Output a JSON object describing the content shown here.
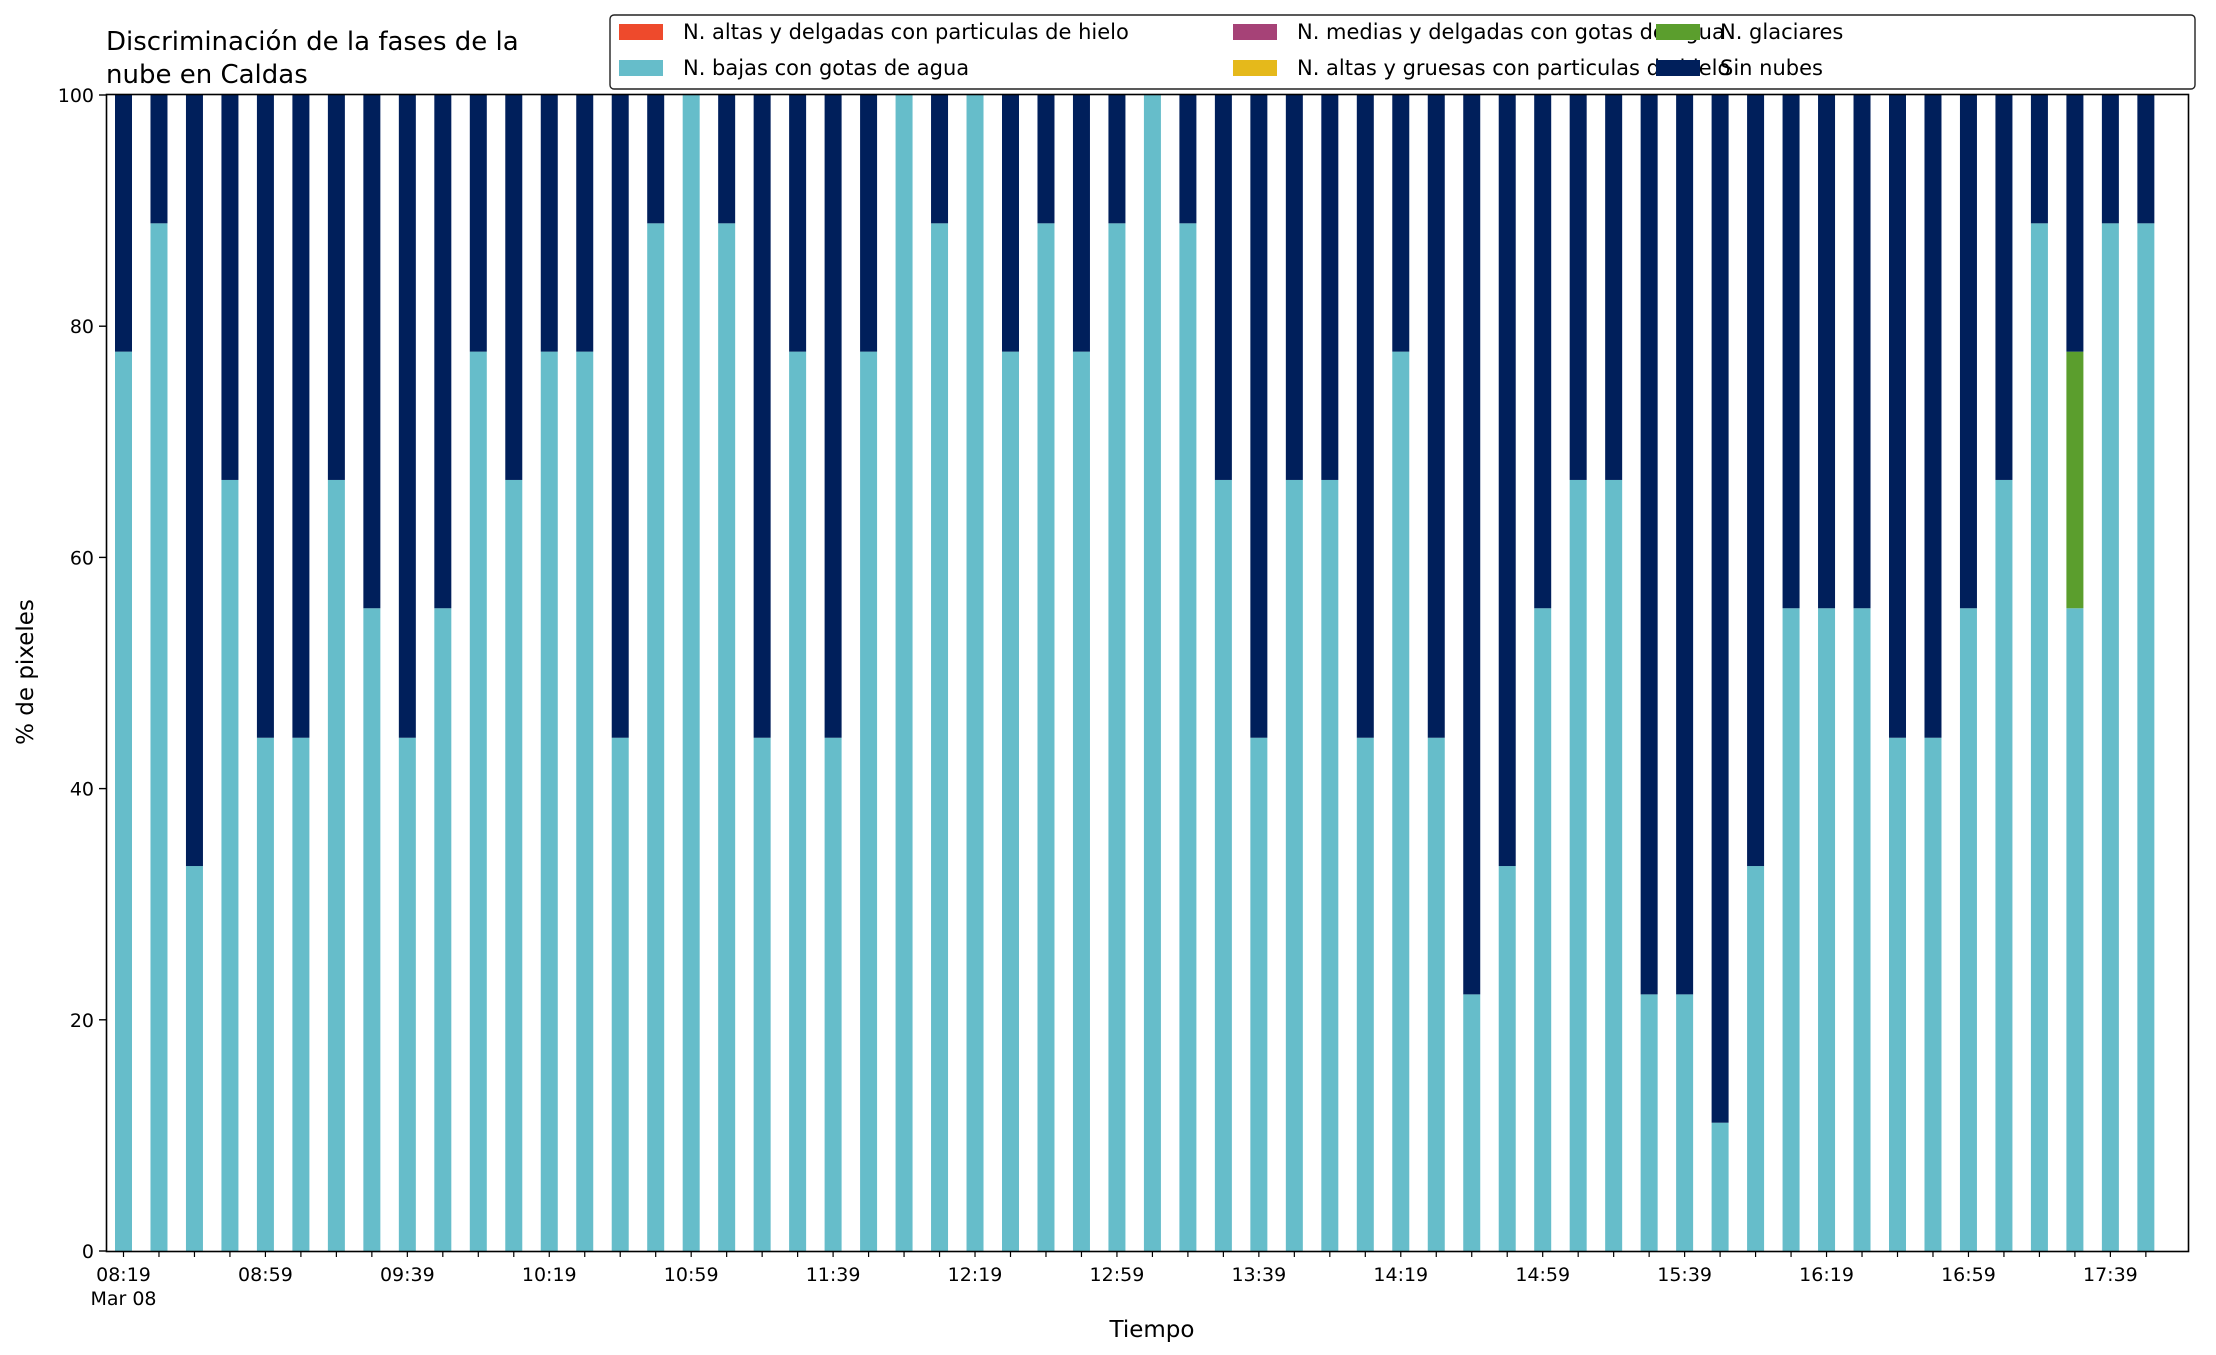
{
  "chart_data": {
    "type": "bar",
    "stacked": true,
    "title": "Discriminación de la fases de la\nnube en Caldas",
    "xlabel": "Tiempo",
    "ylabel": "% de pixeles",
    "ylim": [
      0,
      100
    ],
    "yticks": [
      0,
      20,
      40,
      60,
      80,
      100
    ],
    "grid": false,
    "legend_position": "top-right",
    "legend": [
      "N. altas y delgadas con particulas de hielo",
      "N. bajas con gotas de agua",
      "N. medias y delgadas con gotas de agua",
      "N. altas y gruesas con particulas de hielo",
      "N. glaciares",
      "Sin nubes"
    ],
    "x_tick_labels": [
      "08:19\nMar 08",
      "08:59",
      "09:39",
      "10:19",
      "10:59",
      "11:39",
      "12:19",
      "12:59",
      "13:39",
      "14:19",
      "14:59",
      "15:39",
      "16:19",
      "16:59",
      "17:39"
    ],
    "categories": [
      "08:19",
      "08:29",
      "08:39",
      "08:49",
      "08:59",
      "09:09",
      "09:19",
      "09:29",
      "09:39",
      "09:49",
      "09:59",
      "10:09",
      "10:19",
      "10:29",
      "10:39",
      "10:49",
      "10:59",
      "11:09",
      "11:19",
      "11:29",
      "11:39",
      "11:49",
      "11:59",
      "12:09",
      "12:19",
      "12:29",
      "12:39",
      "12:49",
      "12:59",
      "13:09",
      "13:19",
      "13:29",
      "13:39",
      "13:49",
      "13:59",
      "14:09",
      "14:19",
      "14:29",
      "14:39",
      "14:49",
      "14:59",
      "15:09",
      "15:19",
      "15:29",
      "15:39",
      "15:49",
      "15:59",
      "16:09",
      "16:19",
      "16:29",
      "16:39",
      "16:49",
      "16:59",
      "17:09",
      "17:19",
      "17:29",
      "17:39",
      "17:49"
    ],
    "series": [
      {
        "name": "N. altas y delgadas con particulas de hielo",
        "color": "#ee4a2c",
        "values": [
          0,
          0,
          0,
          0,
          0,
          0,
          0,
          0,
          0,
          0,
          0,
          0,
          0,
          0,
          0,
          0,
          0,
          0,
          0,
          0,
          0,
          0,
          0,
          0,
          0,
          0,
          0,
          0,
          0,
          0,
          0,
          0,
          0,
          0,
          0,
          0,
          0,
          0,
          0,
          0,
          0,
          0,
          0,
          0,
          0,
          0,
          0,
          0,
          0,
          0,
          0,
          0,
          0,
          0,
          0,
          0,
          0,
          0
        ]
      },
      {
        "name": "N. altas y gruesas con particulas de hielo",
        "color": "#e5b91b",
        "values": [
          0,
          0,
          0,
          0,
          0,
          0,
          0,
          0,
          0,
          0,
          0,
          0,
          0,
          0,
          0,
          0,
          0,
          0,
          0,
          0,
          0,
          0,
          0,
          0,
          0,
          0,
          0,
          0,
          0,
          0,
          0,
          0,
          0,
          0,
          0,
          0,
          0,
          0,
          0,
          0,
          0,
          0,
          0,
          0,
          0,
          0,
          0,
          0,
          0,
          0,
          0,
          0,
          0,
          0,
          0,
          0,
          0,
          0
        ]
      },
      {
        "name": "N. bajas con gotas de agua",
        "color": "#66bdca",
        "values": [
          77.8,
          88.9,
          33.3,
          66.7,
          44.4,
          44.4,
          66.7,
          55.6,
          44.4,
          55.6,
          77.8,
          66.7,
          77.8,
          77.8,
          44.4,
          88.9,
          100,
          88.9,
          44.4,
          77.8,
          44.4,
          77.8,
          100,
          88.9,
          100,
          77.8,
          88.9,
          77.8,
          88.9,
          100,
          88.9,
          66.7,
          44.4,
          66.7,
          66.7,
          44.4,
          77.8,
          44.4,
          22.2,
          33.3,
          55.6,
          66.7,
          66.7,
          22.2,
          22.2,
          11.1,
          33.3,
          55.6,
          55.6,
          55.6,
          44.4,
          44.4,
          55.6,
          66.7,
          88.9,
          55.6,
          88.9,
          88.9
        ]
      },
      {
        "name": "N. glaciares",
        "color": "#5b9e2d",
        "values": [
          0,
          0,
          0,
          0,
          0,
          0,
          0,
          0,
          0,
          0,
          0,
          0,
          0,
          0,
          0,
          0,
          0,
          0,
          0,
          0,
          0,
          0,
          0,
          0,
          0,
          0,
          0,
          0,
          0,
          0,
          0,
          0,
          0,
          0,
          0,
          0,
          0,
          0,
          0,
          0,
          0,
          0,
          0,
          0,
          0,
          0,
          0,
          0,
          0,
          0,
          0,
          0,
          0,
          0,
          0,
          22.2,
          0,
          0
        ]
      },
      {
        "name": "N. medias y delgadas con gotas de agua",
        "color": "#a64277",
        "values": [
          0,
          0,
          0,
          0,
          0,
          0,
          0,
          0,
          0,
          0,
          0,
          0,
          0,
          0,
          0,
          0,
          0,
          0,
          0,
          0,
          0,
          0,
          0,
          0,
          0,
          0,
          0,
          0,
          0,
          0,
          0,
          0,
          0,
          0,
          0,
          0,
          0,
          0,
          0,
          0,
          0,
          0,
          0,
          0,
          0,
          0,
          0,
          0,
          0,
          0,
          0,
          0,
          0,
          0,
          0,
          0,
          0,
          0
        ]
      },
      {
        "name": "Sin nubes",
        "color": "#001f5b",
        "values": [
          22.2,
          11.1,
          66.7,
          33.3,
          55.6,
          55.6,
          33.3,
          44.4,
          55.6,
          44.4,
          22.2,
          33.3,
          22.2,
          22.2,
          55.6,
          11.1,
          0,
          11.1,
          55.6,
          22.2,
          55.6,
          22.2,
          0,
          11.1,
          0,
          22.2,
          11.1,
          22.2,
          11.1,
          0,
          11.1,
          33.3,
          55.6,
          33.3,
          33.3,
          55.6,
          22.2,
          55.6,
          77.8,
          66.7,
          44.4,
          33.3,
          33.3,
          77.8,
          77.8,
          88.9,
          66.7,
          44.4,
          44.4,
          44.4,
          55.6,
          55.6,
          44.4,
          33.3,
          11.1,
          22.2,
          11.1,
          11.1
        ]
      }
    ]
  }
}
